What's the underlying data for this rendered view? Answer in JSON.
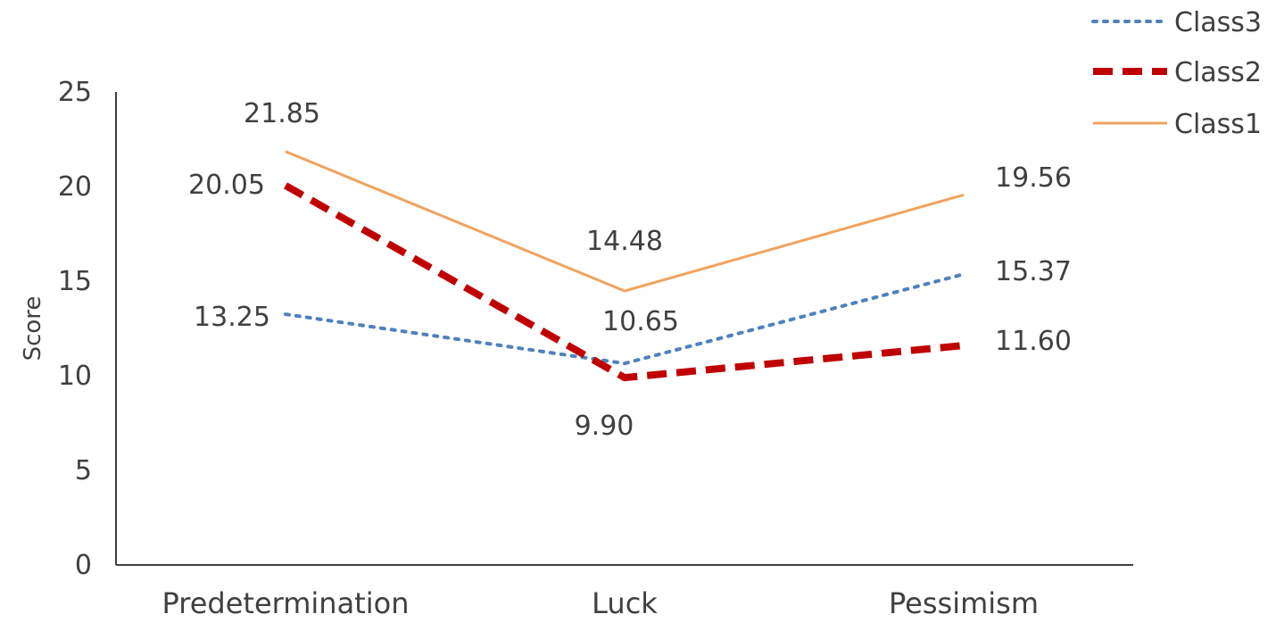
{
  "chart_data": {
    "type": "line",
    "title": "",
    "xlabel": "",
    "ylabel": "Score",
    "categories": [
      "Predetermination",
      "Luck",
      "Pessimism"
    ],
    "ylim": [
      0,
      25
    ],
    "yticks": [
      0,
      5,
      10,
      15,
      20,
      25
    ],
    "grid": false,
    "legend_position": "top-right",
    "series": [
      {
        "name": "Class3",
        "values": [
          13.25,
          10.65,
          15.37
        ],
        "labels": [
          "13.25",
          "10.65",
          "15.37"
        ],
        "color": "#4f81bd",
        "style": "dotted"
      },
      {
        "name": "Class2",
        "values": [
          20.05,
          9.9,
          11.6
        ],
        "labels": [
          "20.05",
          "9.90",
          "11.60"
        ],
        "color": "#c00000",
        "style": "dashed"
      },
      {
        "name": "Class1",
        "values": [
          21.85,
          14.48,
          19.56
        ],
        "labels": [
          "21.85",
          "14.48",
          "19.56"
        ],
        "color": "#f0a35e",
        "style": "solid"
      }
    ]
  }
}
